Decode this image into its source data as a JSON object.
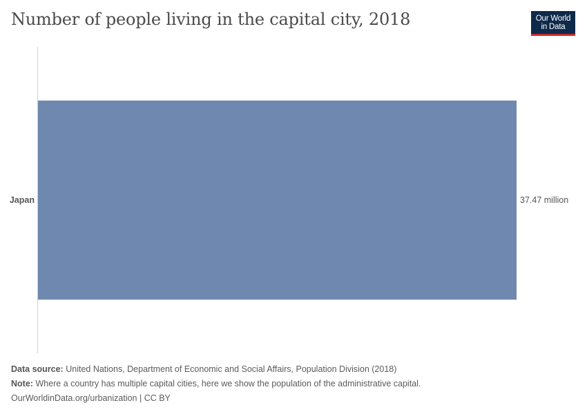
{
  "header": {
    "title": "Number of people living in the capital city, 2018",
    "logo_line1": "Our World",
    "logo_line2": "in Data"
  },
  "chart_data": {
    "type": "bar",
    "orientation": "horizontal",
    "categories": [
      "Japan"
    ],
    "values": [
      37.47
    ],
    "value_labels": [
      "37.47 million"
    ],
    "unit": "million",
    "xlim": [
      0,
      37.47
    ],
    "grid": false,
    "colors": {
      "bar": "#6f88b0",
      "axis": "#d0d0d0",
      "label": "#555555"
    }
  },
  "footer": {
    "source_label": "Data source:",
    "source_text": "United Nations, Department of Economic and Social Affairs, Population Division (2018)",
    "note_label": "Note:",
    "note_text": "Where a country has multiple capital cities, here we show the population of the administrative capital.",
    "credit": "OurWorldinData.org/urbanization | CC BY"
  }
}
